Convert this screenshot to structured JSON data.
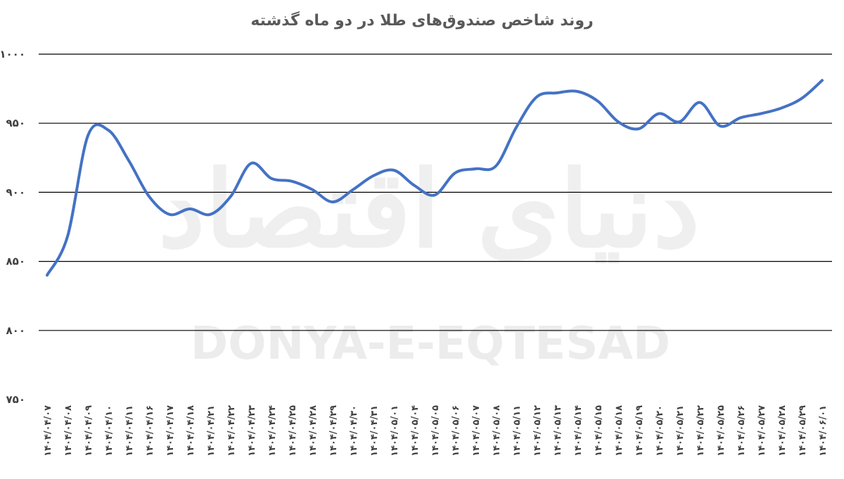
{
  "watermark": {
    "persian": "دنیای اقتصاد",
    "latin": "DONYA-E-EQTESAD"
  },
  "colors": {
    "series": "#4472c4",
    "grid": "#000000",
    "text": "#404040",
    "title": "#595959"
  },
  "chart_data": {
    "type": "line",
    "title": "روند شاخص صندوق‌های طلا در دو ماه گذشته",
    "xlabel": "",
    "ylabel": "",
    "ylim": [
      750,
      1000
    ],
    "yticks": [
      750,
      800,
      850,
      900,
      950,
      1000
    ],
    "ytick_labels": [
      "۷۵۰",
      "۸۰۰",
      "۸۵۰",
      "۹۰۰",
      "۹۵۰",
      "۱۰۰۰"
    ],
    "grid": true,
    "legend": "none",
    "categories": [
      "۱۴۰۴/۰۴/۰۷",
      "۱۴۰۴/۰۴/۰۸",
      "۱۴۰۴/۰۴/۰۹",
      "۱۴۰۴/۰۴/۱۰",
      "۱۴۰۴/۰۴/۱۱",
      "۱۴۰۴/۰۴/۱۶",
      "۱۴۰۴/۰۴/۱۷",
      "۱۴۰۴/۰۴/۱۸",
      "۱۴۰۴/۰۴/۲۱",
      "۱۴۰۴/۰۴/۲۲",
      "۱۴۰۴/۰۴/۲۳",
      "۱۴۰۴/۰۴/۲۴",
      "۱۴۰۴/۰۴/۲۵",
      "۱۴۰۴/۰۴/۲۸",
      "۱۴۰۴/۰۴/۲۹",
      "۱۴۰۴/۰۴/۳۰",
      "۱۴۰۴/۰۴/۳۱",
      "۱۴۰۴/۰۵/۰۱",
      "۱۴۰۴/۰۵/۰۴",
      "۱۴۰۴/۰۵/۰۵",
      "۱۴۰۴/۰۵/۰۶",
      "۱۴۰۴/۰۵/۰۷",
      "۱۴۰۴/۰۵/۰۸",
      "۱۴۰۴/۰۵/۱۱",
      "۱۴۰۴/۰۵/۱۲",
      "۱۴۰۴/۰۵/۱۳",
      "۱۴۰۴/۰۵/۱۴",
      "۱۴۰۴/۰۵/۱۵",
      "۱۴۰۴/۰۵/۱۸",
      "۱۴۰۴/۰۵/۱۹",
      "۱۴۰۴/۰۵/۲۰",
      "۱۴۰۴/۰۵/۲۱",
      "۱۴۰۴/۰۵/۲۲",
      "۱۴۰۴/۰۵/۲۵",
      "۱۴۰۴/۰۵/۲۶",
      "۱۴۰۴/۰۵/۲۷",
      "۱۴۰۴/۰۵/۲۸",
      "۱۴۰۴/۰۵/۲۹",
      "۱۴۰۴/۰۶/۰۱"
    ],
    "series": [
      {
        "values": [
          840,
          868,
          941,
          945,
          923,
          897,
          884,
          888,
          884,
          897,
          921,
          910,
          908,
          902,
          893,
          902,
          912,
          916,
          905,
          898,
          914,
          917,
          919,
          947,
          969,
          972,
          973,
          966,
          951,
          946,
          957,
          951,
          965,
          948,
          954,
          957,
          961,
          968,
          981
        ]
      }
    ]
  }
}
